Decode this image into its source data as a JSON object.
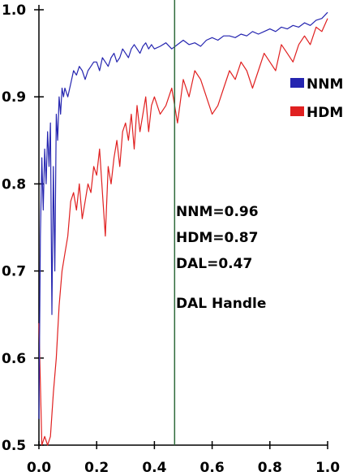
{
  "chart_data": {
    "type": "line",
    "title": "",
    "xlabel": "",
    "ylabel": "",
    "xlim": [
      0.0,
      1.0
    ],
    "ylim": [
      0.5,
      1.0
    ],
    "x_ticks": [
      "0.0",
      "0.2",
      "0.4",
      "0.6",
      "0.8",
      "1.0"
    ],
    "y_ticks": [
      "0.5",
      "0.6",
      "0.7",
      "0.8",
      "0.9",
      "1.0"
    ],
    "grid": false,
    "legend_position": "right",
    "series": [
      {
        "name": "NNM",
        "color": "#2525b0",
        "x": [
          0.0,
          0.005,
          0.01,
          0.015,
          0.02,
          0.025,
          0.03,
          0.035,
          0.04,
          0.045,
          0.05,
          0.055,
          0.06,
          0.065,
          0.07,
          0.075,
          0.08,
          0.085,
          0.09,
          0.095,
          0.1,
          0.11,
          0.12,
          0.13,
          0.14,
          0.15,
          0.16,
          0.17,
          0.18,
          0.19,
          0.2,
          0.21,
          0.22,
          0.23,
          0.24,
          0.25,
          0.26,
          0.27,
          0.28,
          0.29,
          0.3,
          0.31,
          0.32,
          0.33,
          0.34,
          0.35,
          0.36,
          0.37,
          0.38,
          0.39,
          0.4,
          0.42,
          0.44,
          0.46,
          0.48,
          0.5,
          0.52,
          0.54,
          0.56,
          0.58,
          0.6,
          0.62,
          0.64,
          0.66,
          0.68,
          0.7,
          0.72,
          0.74,
          0.76,
          0.78,
          0.8,
          0.82,
          0.84,
          0.86,
          0.88,
          0.9,
          0.92,
          0.94,
          0.96,
          0.98,
          1.0
        ],
        "values": [
          0.53,
          0.74,
          0.83,
          0.77,
          0.84,
          0.8,
          0.86,
          0.82,
          0.87,
          0.65,
          0.82,
          0.7,
          0.88,
          0.85,
          0.9,
          0.88,
          0.91,
          0.9,
          0.91,
          0.905,
          0.9,
          0.915,
          0.93,
          0.925,
          0.935,
          0.93,
          0.92,
          0.93,
          0.935,
          0.94,
          0.94,
          0.93,
          0.945,
          0.94,
          0.935,
          0.945,
          0.95,
          0.94,
          0.945,
          0.955,
          0.95,
          0.945,
          0.955,
          0.96,
          0.955,
          0.95,
          0.958,
          0.962,
          0.955,
          0.96,
          0.955,
          0.958,
          0.962,
          0.955,
          0.96,
          0.965,
          0.96,
          0.962,
          0.958,
          0.965,
          0.968,
          0.965,
          0.97,
          0.97,
          0.968,
          0.972,
          0.97,
          0.975,
          0.972,
          0.975,
          0.978,
          0.975,
          0.98,
          0.978,
          0.982,
          0.98,
          0.985,
          0.982,
          0.988,
          0.99,
          0.997
        ]
      },
      {
        "name": "HDM",
        "color": "#e02020",
        "x": [
          0.0,
          0.01,
          0.02,
          0.03,
          0.04,
          0.05,
          0.06,
          0.07,
          0.08,
          0.09,
          0.1,
          0.11,
          0.12,
          0.13,
          0.14,
          0.15,
          0.16,
          0.17,
          0.18,
          0.19,
          0.2,
          0.21,
          0.22,
          0.23,
          0.24,
          0.25,
          0.26,
          0.27,
          0.28,
          0.29,
          0.3,
          0.31,
          0.32,
          0.33,
          0.34,
          0.35,
          0.36,
          0.37,
          0.38,
          0.39,
          0.4,
          0.42,
          0.44,
          0.46,
          0.48,
          0.5,
          0.52,
          0.54,
          0.56,
          0.58,
          0.6,
          0.62,
          0.64,
          0.66,
          0.68,
          0.7,
          0.72,
          0.74,
          0.76,
          0.78,
          0.8,
          0.82,
          0.84,
          0.86,
          0.88,
          0.9,
          0.92,
          0.94,
          0.96,
          0.98,
          1.0
        ],
        "values": [
          0.64,
          0.5,
          0.51,
          0.5,
          0.51,
          0.56,
          0.6,
          0.66,
          0.7,
          0.72,
          0.74,
          0.78,
          0.79,
          0.77,
          0.8,
          0.76,
          0.78,
          0.8,
          0.79,
          0.82,
          0.81,
          0.84,
          0.79,
          0.74,
          0.82,
          0.8,
          0.83,
          0.85,
          0.82,
          0.86,
          0.87,
          0.85,
          0.88,
          0.84,
          0.89,
          0.86,
          0.88,
          0.9,
          0.86,
          0.89,
          0.9,
          0.88,
          0.89,
          0.91,
          0.87,
          0.92,
          0.9,
          0.93,
          0.92,
          0.9,
          0.88,
          0.89,
          0.91,
          0.93,
          0.92,
          0.94,
          0.93,
          0.91,
          0.93,
          0.95,
          0.94,
          0.93,
          0.96,
          0.95,
          0.94,
          0.96,
          0.97,
          0.96,
          0.98,
          0.975,
          0.99
        ]
      }
    ],
    "handle": {
      "x": 0.47,
      "color": "#2f6b3c"
    },
    "readouts": [
      "NNM=0.96",
      "HDM=0.87",
      "DAL=0.47",
      "DAL Handle"
    ],
    "axis_color": "#000000"
  }
}
